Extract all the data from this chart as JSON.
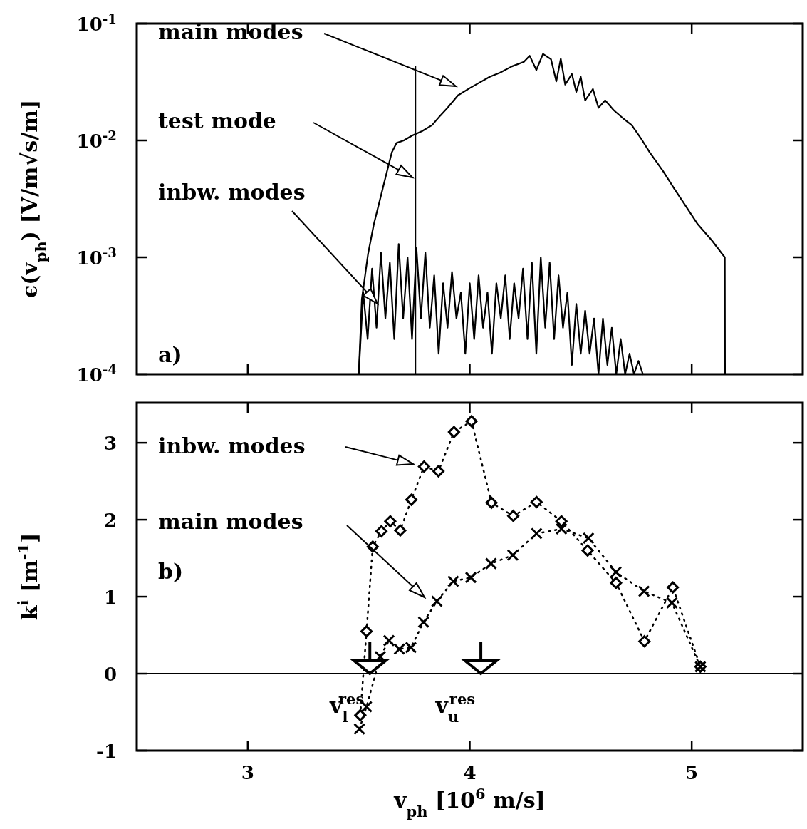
{
  "chart_data": [
    {
      "type": "line",
      "ylabel": "ϵ(v$_{ph}$) [V/m√s/m]",
      "xlim": [
        2.5,
        5.5
      ],
      "xticks": [
        3,
        4,
        5
      ],
      "ylim": [
        0.0001,
        0.1
      ],
      "log": "y",
      "tick_labels": "y",
      "yticks": [
        {
          "value": 0.1,
          "label": "10$^{-1}$"
        },
        {
          "value": 0.01,
          "label": "10$^{-2}$"
        },
        {
          "value": 0.001,
          "label": "10$^{-3}$"
        },
        {
          "value": 0.0001,
          "label": "10$^{-4}$"
        }
      ],
      "grid": false,
      "marker": "none",
      "line_style": "solid",
      "series": [
        {
          "color": "#000000",
          "x": [
            3.5,
            3.514,
            3.542,
            3.568,
            3.595,
            3.622,
            3.649,
            3.67,
            3.703,
            3.74,
            3.785,
            3.83,
            3.866,
            3.9,
            3.947,
            4.0,
            4.041,
            4.09,
            4.136,
            4.19,
            4.244,
            4.27,
            4.3,
            4.33,
            4.366,
            4.39,
            4.41,
            4.43,
            4.46,
            4.48,
            4.5,
            4.52,
            4.555,
            4.58,
            4.61,
            4.649,
            4.69,
            4.73,
            4.77,
            4.811,
            4.87,
            4.92,
            4.97,
            5.027,
            5.09,
            5.149,
            5.15
          ],
          "values": [
            0.0001,
            0.00044,
            0.00107,
            0.00192,
            0.00308,
            0.00496,
            0.0079,
            0.0095,
            0.01,
            0.011,
            0.012,
            0.0135,
            0.0162,
            0.019,
            0.0243,
            0.028,
            0.031,
            0.035,
            0.038,
            0.043,
            0.047,
            0.053,
            0.04,
            0.055,
            0.0495,
            0.032,
            0.05,
            0.03,
            0.037,
            0.026,
            0.035,
            0.022,
            0.0275,
            0.019,
            0.022,
            0.0181,
            0.0155,
            0.0135,
            0.0105,
            0.0079,
            0.0055,
            0.0039,
            0.0028,
            0.00192,
            0.0014,
            0.001,
            0.0001
          ]
        },
        {
          "color": "#000000",
          "x": [
            3.755,
            3.755
          ],
          "values": [
            0.0001,
            0.043
          ]
        },
        {
          "color": "#000000",
          "x": [
            3.5,
            3.52,
            3.54,
            3.56,
            3.58,
            3.6,
            3.62,
            3.64,
            3.66,
            3.68,
            3.7,
            3.72,
            3.74,
            3.76,
            3.78,
            3.8,
            3.82,
            3.84,
            3.86,
            3.88,
            3.9,
            3.92,
            3.94,
            3.96,
            3.98,
            4.0,
            4.02,
            4.04,
            4.06,
            4.08,
            4.1,
            4.12,
            4.14,
            4.16,
            4.18,
            4.2,
            4.22,
            4.24,
            4.26,
            4.28,
            4.3,
            4.32,
            4.34,
            4.36,
            4.38,
            4.4,
            4.42,
            4.44,
            4.46,
            4.48,
            4.5,
            4.52,
            4.54,
            4.56,
            4.58,
            4.6,
            4.62,
            4.64,
            4.66,
            4.68,
            4.7,
            4.72,
            4.74,
            4.76,
            4.78
          ],
          "values": [
            0.0001,
            0.0005,
            0.0002,
            0.0008,
            0.00025,
            0.0011,
            0.0003,
            0.0009,
            0.0002,
            0.0013,
            0.0003,
            0.001,
            0.0002,
            0.0012,
            0.0003,
            0.0011,
            0.00025,
            0.0007,
            0.00015,
            0.0006,
            0.00025,
            0.00075,
            0.0003,
            0.0005,
            0.00015,
            0.0006,
            0.0002,
            0.0007,
            0.00025,
            0.0005,
            0.00015,
            0.0006,
            0.0003,
            0.0007,
            0.0002,
            0.0006,
            0.0003,
            0.0008,
            0.0002,
            0.0009,
            0.00015,
            0.001,
            0.00025,
            0.0009,
            0.0002,
            0.0007,
            0.00025,
            0.0005,
            0.00012,
            0.0004,
            0.00015,
            0.00035,
            0.00015,
            0.0003,
            0.0001,
            0.0003,
            0.00012,
            0.00025,
            0.0001,
            0.0002,
            0.0001,
            0.00015,
            0.0001,
            0.00013,
            0.0001
          ]
        }
      ],
      "annotations": [
        "main modes",
        "test mode",
        "inbw. modes",
        "a)"
      ]
    },
    {
      "type": "line",
      "xlabel": "v$_{ph}$ [10$^{6}$ m/s]",
      "ylabel": "k$^{i}$ [m$^{-1}$]",
      "xlim": [
        2.5,
        5.5
      ],
      "xticks": [
        3,
        4,
        5
      ],
      "ylim": [
        -1,
        3.52
      ],
      "yticks": [
        -1,
        0,
        1,
        2,
        3
      ],
      "grid": false,
      "line_style": "dotted",
      "series": [
        {
          "color": "#000000",
          "marker": "diamond",
          "x": [
            3.507,
            3.535,
            3.563,
            3.602,
            3.642,
            3.687,
            3.737,
            3.794,
            3.859,
            3.929,
            4.008,
            4.098,
            4.196,
            4.301,
            4.413,
            4.531,
            4.659,
            4.787,
            4.915,
            5.039
          ],
          "values": [
            -0.54,
            0.55,
            1.65,
            1.85,
            1.98,
            1.86,
            2.26,
            2.69,
            2.63,
            3.14,
            3.28,
            2.22,
            2.05,
            2.23,
            1.98,
            1.6,
            1.18,
            0.42,
            1.12,
            0.09
          ]
        },
        {
          "color": "#000000",
          "marker": "cross",
          "x": [
            3.503,
            3.535,
            3.597,
            3.636,
            3.683,
            3.735,
            3.792,
            3.852,
            3.926,
            4.005,
            4.096,
            4.194,
            4.301,
            4.413,
            4.535,
            4.659,
            4.785,
            4.911,
            5.039
          ],
          "values": [
            -0.72,
            -0.43,
            0.22,
            0.43,
            0.32,
            0.34,
            0.67,
            0.94,
            1.2,
            1.25,
            1.43,
            1.54,
            1.82,
            1.88,
            1.76,
            1.32,
            1.07,
            0.92,
            0.09
          ]
        }
      ],
      "ref_lines": [
        {
          "axis": "y",
          "value": 0,
          "color": "#000000"
        }
      ],
      "annotations": [
        "inbw. modes",
        "main modes",
        "b)",
        {
          "text": "v$_{l}$$^{res}$",
          "x": 3.55,
          "y": 0
        },
        {
          "text": "v$_{u}$$^{res}$",
          "x": 4.05,
          "y": 0
        }
      ]
    }
  ]
}
